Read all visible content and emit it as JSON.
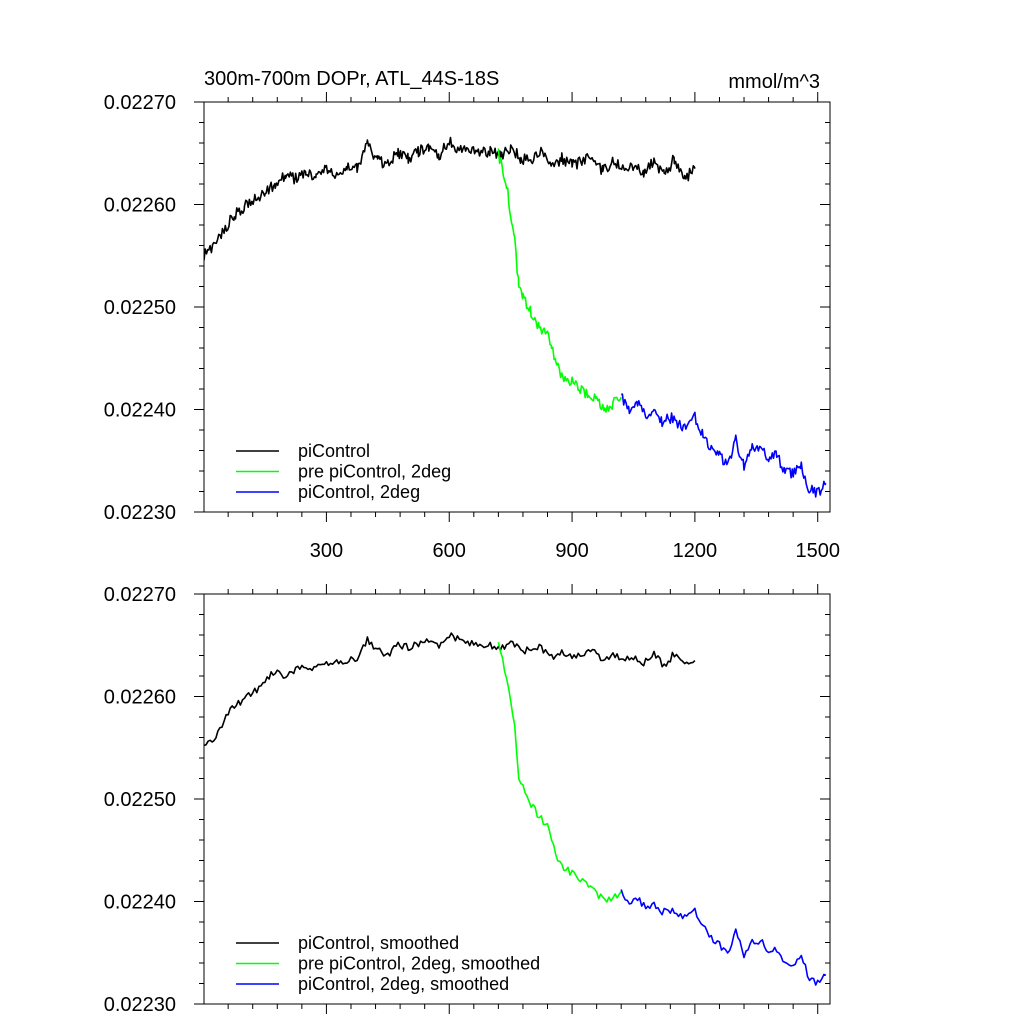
{
  "title_left": "300m-700m DOPr, ATL_44S-18S",
  "title_right": "mmol/m^3",
  "colors": {
    "piControl": "#000000",
    "pre_2deg": "#00ff00",
    "pi_2deg": "#0000ff",
    "axis": "#000000",
    "background": "#ffffff"
  },
  "chart_data": [
    {
      "type": "line",
      "title": "300m-700m DOPr, ATL_44S-18S",
      "units_label": "mmol/m^3",
      "xlim": [
        1,
        1530
      ],
      "ylim": [
        0.0223,
        0.0227
      ],
      "x_ticks": [
        300,
        600,
        900,
        1200,
        1500
      ],
      "x_tick_labels": [
        "300",
        "600",
        "900",
        "1200",
        "1500"
      ],
      "y_ticks": [
        0.0223,
        0.0224,
        0.0225,
        0.0226,
        0.0227
      ],
      "y_tick_labels": [
        "0.02230",
        "0.02240",
        "0.02250",
        "0.02260",
        "0.02270"
      ],
      "grid": false,
      "legend_position": "bottom-left",
      "series": [
        {
          "name": "piControl",
          "color": "#000000",
          "x": [
            1,
            25,
            50,
            75,
            100,
            125,
            150,
            175,
            200,
            225,
            250,
            275,
            300,
            325,
            350,
            375,
            400,
            425,
            450,
            475,
            500,
            525,
            550,
            575,
            600,
            625,
            650,
            675,
            700,
            725,
            750,
            775,
            800,
            825,
            850,
            875,
            900,
            925,
            950,
            975,
            1000,
            1025,
            1050,
            1075,
            1100,
            1125,
            1150,
            1175,
            1200
          ],
          "y": [
            0.02255,
            0.02256,
            0.022575,
            0.02259,
            0.022598,
            0.022605,
            0.022612,
            0.02262,
            0.022628,
            0.022625,
            0.022632,
            0.022628,
            0.022635,
            0.02263,
            0.022638,
            0.022636,
            0.022658,
            0.022642,
            0.02264,
            0.02265,
            0.022645,
            0.022652,
            0.022655,
            0.022648,
            0.022662,
            0.022652,
            0.022655,
            0.02265,
            0.022652,
            0.022648,
            0.022655,
            0.022645,
            0.022642,
            0.022652,
            0.022635,
            0.022645,
            0.022638,
            0.022642,
            0.022648,
            0.022632,
            0.022642,
            0.022635,
            0.022638,
            0.02263,
            0.022642,
            0.022628,
            0.022645,
            0.022625,
            0.022635
          ]
        },
        {
          "name": "pre piControl, 2deg",
          "color": "#00ff00",
          "x": [
            720,
            740,
            760,
            770,
            780,
            800,
            820,
            840,
            850,
            860,
            880,
            900,
            920,
            940,
            960,
            980,
            1000,
            1020
          ],
          "y": [
            0.02265,
            0.02262,
            0.022565,
            0.02252,
            0.02251,
            0.022495,
            0.02248,
            0.022475,
            0.02246,
            0.022445,
            0.02243,
            0.022428,
            0.02242,
            0.022415,
            0.02241,
            0.022398,
            0.022405,
            0.022412
          ]
        },
        {
          "name": "piControl, 2deg",
          "color": "#0000ff",
          "x": [
            1020,
            1040,
            1060,
            1080,
            1100,
            1120,
            1140,
            1160,
            1180,
            1200,
            1220,
            1240,
            1260,
            1280,
            1300,
            1320,
            1340,
            1360,
            1380,
            1400,
            1420,
            1440,
            1460,
            1480,
            1500,
            1520
          ],
          "y": [
            0.022412,
            0.0224,
            0.022405,
            0.022395,
            0.022398,
            0.022388,
            0.022392,
            0.022385,
            0.022382,
            0.022392,
            0.022375,
            0.022362,
            0.022355,
            0.022345,
            0.02237,
            0.022345,
            0.022362,
            0.022365,
            0.022352,
            0.022355,
            0.02234,
            0.022338,
            0.022345,
            0.022322,
            0.022318,
            0.022328
          ]
        }
      ]
    },
    {
      "type": "line",
      "xlim": [
        1,
        1530
      ],
      "ylim": [
        0.0223,
        0.0227
      ],
      "x_ticks": [
        300,
        600,
        900,
        1200,
        1500
      ],
      "y_ticks": [
        0.0223,
        0.0224,
        0.0225,
        0.0226,
        0.0227
      ],
      "y_tick_labels": [
        "0.02230",
        "0.02240",
        "0.02250",
        "0.02260",
        "0.02270"
      ],
      "grid": false,
      "legend_position": "bottom-left",
      "series": [
        {
          "name": "piControl, smoothed",
          "color": "#000000",
          "x": [
            1,
            25,
            50,
            75,
            100,
            125,
            150,
            175,
            200,
            225,
            250,
            275,
            300,
            325,
            350,
            375,
            400,
            425,
            450,
            475,
            500,
            525,
            550,
            575,
            600,
            625,
            650,
            675,
            700,
            725,
            750,
            775,
            800,
            825,
            850,
            875,
            900,
            925,
            950,
            975,
            1000,
            1025,
            1050,
            1075,
            1100,
            1125,
            1150,
            1175,
            1200
          ],
          "y": [
            0.022555,
            0.022555,
            0.022578,
            0.02259,
            0.022598,
            0.022605,
            0.022615,
            0.022625,
            0.02262,
            0.022625,
            0.02263,
            0.022628,
            0.022632,
            0.022635,
            0.022635,
            0.022638,
            0.022655,
            0.022645,
            0.02264,
            0.02265,
            0.022648,
            0.022652,
            0.022655,
            0.02265,
            0.02266,
            0.022655,
            0.022652,
            0.022652,
            0.02265,
            0.022648,
            0.022652,
            0.022645,
            0.022645,
            0.022648,
            0.022638,
            0.022642,
            0.022638,
            0.02264,
            0.022648,
            0.022635,
            0.022642,
            0.022635,
            0.022638,
            0.022632,
            0.022642,
            0.02263,
            0.022642,
            0.02263,
            0.022635
          ]
        },
        {
          "name": "pre piControl, 2deg, smoothed",
          "color": "#00ff00",
          "x": [
            720,
            740,
            760,
            770,
            780,
            800,
            820,
            840,
            850,
            860,
            880,
            900,
            920,
            940,
            960,
            980,
            1000,
            1020
          ],
          "y": [
            0.02265,
            0.02262,
            0.02257,
            0.02252,
            0.022512,
            0.022495,
            0.022482,
            0.022475,
            0.02246,
            0.022445,
            0.022432,
            0.022428,
            0.022422,
            0.022415,
            0.022408,
            0.0224,
            0.022402,
            0.02241
          ]
        },
        {
          "name": "piControl, 2deg, smoothed",
          "color": "#0000ff",
          "x": [
            1020,
            1040,
            1060,
            1080,
            1100,
            1120,
            1140,
            1160,
            1180,
            1200,
            1220,
            1240,
            1260,
            1280,
            1300,
            1320,
            1340,
            1360,
            1380,
            1400,
            1420,
            1440,
            1460,
            1480,
            1500,
            1520
          ],
          "y": [
            0.02241,
            0.0224,
            0.022402,
            0.022395,
            0.022398,
            0.02239,
            0.022392,
            0.022385,
            0.022385,
            0.02239,
            0.022378,
            0.022365,
            0.022358,
            0.022348,
            0.02237,
            0.022348,
            0.02236,
            0.022362,
            0.022352,
            0.022352,
            0.022342,
            0.02234,
            0.022345,
            0.022325,
            0.02232,
            0.022328
          ]
        }
      ]
    }
  ]
}
